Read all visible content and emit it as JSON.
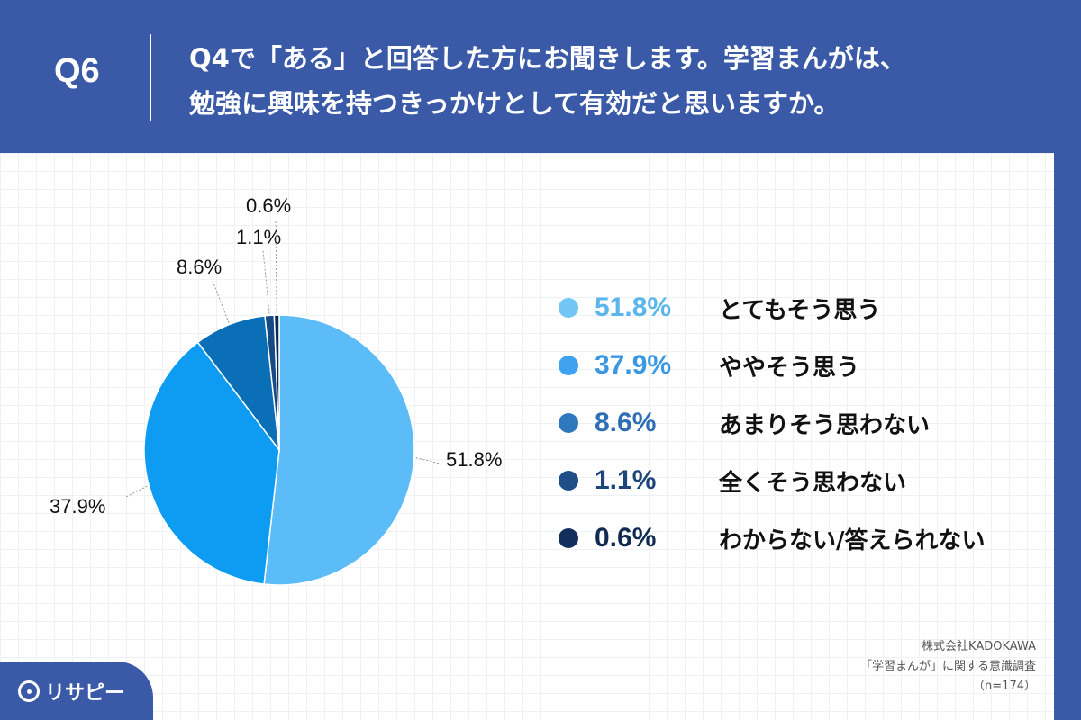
{
  "question": {
    "number": "Q6",
    "line1": "Q4で「ある」と回答した方にお聞きします。学習まんがは、",
    "line2": "勉強に興味を持つきっかけとして有効だと思いますか。"
  },
  "colors": {
    "header_bg": "#3a5aa8",
    "series": [
      "#5bbcf7",
      "#0d9cf2",
      "#0b6fb8",
      "#164a85",
      "#0d2a57"
    ],
    "legend_dot": [
      "#72c6f5",
      "#3ea2f0",
      "#2f78be",
      "#1f4f86",
      "#112e5c"
    ],
    "legend_text": [
      "#5ab6ec",
      "#3a98e2",
      "#2c6fb3",
      "#1c4679",
      "#102a52"
    ]
  },
  "chart_data": {
    "type": "pie",
    "title": "Q4で「ある」と回答した方にお聞きします。学習まんがは、勉強に興味を持つきっかけとして有効だと思いますか。",
    "categories": [
      "とてもそう思う",
      "ややそう思う",
      "あまりそう思わない",
      "全くそう思わない",
      "わからない/答えられない"
    ],
    "values": [
      51.8,
      37.9,
      8.6,
      1.1,
      0.6
    ],
    "value_labels": [
      "51.8%",
      "37.9%",
      "8.6%",
      "1.1%",
      "0.6%"
    ],
    "start": "12 o'clock",
    "direction": "clockwise",
    "n": 174
  },
  "source": {
    "company": "株式会社KADOKAWA",
    "survey": "「学習まんが」に関する意識調査",
    "sample": "（n=174）"
  },
  "logo": {
    "name": "リサピー",
    "icon": "pin-icon"
  }
}
